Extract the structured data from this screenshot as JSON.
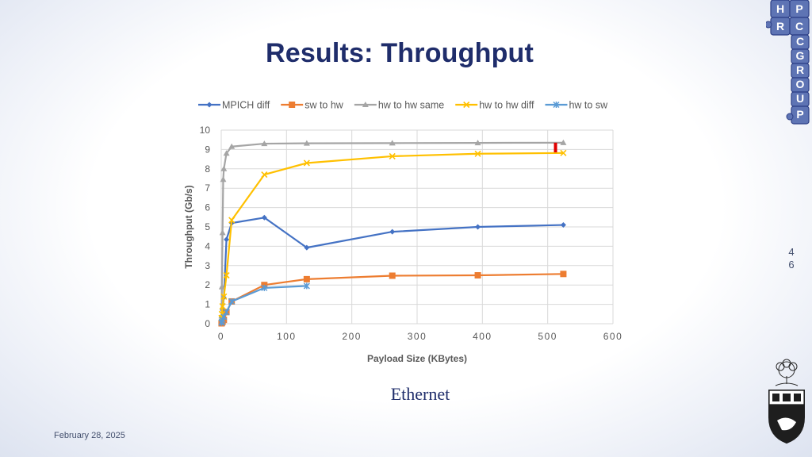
{
  "slide": {
    "title": "Results: Throughput",
    "caption": "Ethernet",
    "date": "February 28, 2025",
    "page_number": "46",
    "puzzle_logo_letters": [
      "H",
      "P",
      "C",
      "R",
      "C",
      "G",
      "R",
      "O",
      "U",
      "P"
    ],
    "accent_color": "#1f2d6b"
  },
  "chart_data": {
    "type": "line",
    "title": "",
    "xlabel": "Payload Size (KBytes)",
    "ylabel": "Throughput (Gb/s)",
    "xlim": [
      0,
      600
    ],
    "ylim": [
      0,
      10
    ],
    "xticks": [
      0,
      100,
      200,
      300,
      400,
      500,
      600
    ],
    "yticks": [
      0,
      1,
      2,
      3,
      4,
      5,
      6,
      7,
      8,
      9,
      10
    ],
    "grid": true,
    "legend_position": "top",
    "series": [
      {
        "name": "MPICH diff",
        "color": "#4472c4",
        "marker": "diamond",
        "x": [
          0.5,
          1,
          2,
          4,
          8,
          16,
          66,
          131,
          262,
          393,
          524
        ],
        "y": [
          0.1,
          0.3,
          0.7,
          1.35,
          4.35,
          5.2,
          5.48,
          3.93,
          4.75,
          5.0,
          5.1
        ]
      },
      {
        "name": "sw to hw",
        "color": "#ed7d31",
        "marker": "square",
        "x": [
          0.5,
          1,
          2,
          4,
          8,
          16,
          66,
          131,
          262,
          393,
          524
        ],
        "y": [
          0.02,
          0.05,
          0.1,
          0.2,
          0.6,
          1.15,
          2.0,
          2.3,
          2.48,
          2.5,
          2.57
        ]
      },
      {
        "name": "hw to hw same",
        "color": "#a5a5a5",
        "marker": "triangle",
        "x": [
          0.5,
          1,
          2,
          3,
          4,
          8,
          16,
          66,
          131,
          262,
          393,
          524
        ],
        "y": [
          0.4,
          1.9,
          4.7,
          7.45,
          8.0,
          8.8,
          9.15,
          9.3,
          9.32,
          9.33,
          9.34,
          9.35
        ]
      },
      {
        "name": "hw to hw diff",
        "color": "#ffc000",
        "marker": "x",
        "x": [
          0.5,
          1,
          2,
          4,
          8,
          16,
          66,
          131,
          262,
          393,
          524
        ],
        "y": [
          0.3,
          0.5,
          0.9,
          1.4,
          2.5,
          5.35,
          7.7,
          8.3,
          8.65,
          8.78,
          8.82
        ]
      },
      {
        "name": "hw to sw",
        "color": "#5b9bd5",
        "marker": "star",
        "x": [
          0.5,
          1,
          2,
          4,
          8,
          16,
          66,
          131
        ],
        "y": [
          0.05,
          0.1,
          0.2,
          0.35,
          0.6,
          1.15,
          1.85,
          1.95
        ]
      }
    ],
    "annotations": [
      {
        "type": "red-bar",
        "x": 512,
        "y_from": 8.85,
        "y_to": 9.35,
        "color": "#e00000"
      }
    ]
  }
}
